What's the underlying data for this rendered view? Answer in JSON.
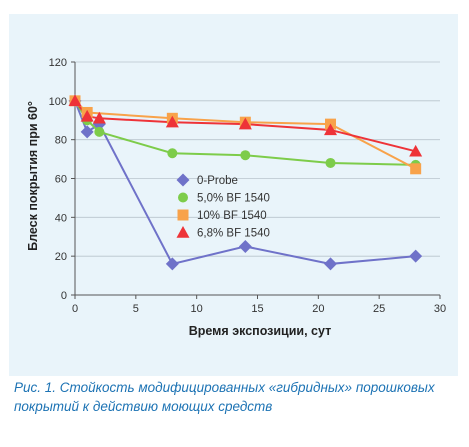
{
  "chart_data": {
    "type": "line",
    "xlabel": "Время экспозиции, сут",
    "ylabel": "Блеск покрытия при 60°",
    "xlim": [
      0,
      30
    ],
    "ylim": [
      0,
      120
    ],
    "xticks": [
      0,
      5,
      10,
      15,
      20,
      25,
      30
    ],
    "yticks": [
      0,
      20,
      40,
      60,
      80,
      100,
      120
    ],
    "grid": "horizontal",
    "legend_position": "center-right",
    "series": [
      {
        "name": "0-Probe",
        "marker": "diamond",
        "color": "#6f72c9",
        "x": [
          0,
          1,
          2,
          8,
          14,
          21,
          28
        ],
        "y": [
          100,
          84,
          88,
          16,
          25,
          16,
          20
        ]
      },
      {
        "name": "5,0% BF 1540",
        "marker": "circle",
        "color": "#7dcc4a",
        "x": [
          0,
          1,
          2,
          8,
          14,
          21,
          28
        ],
        "y": [
          100,
          90,
          84,
          73,
          72,
          68,
          67
        ]
      },
      {
        "name": "10% BF 1540",
        "marker": "square",
        "color": "#f8a24a",
        "x": [
          0,
          1,
          8,
          14,
          21,
          28
        ],
        "y": [
          100,
          94,
          91,
          89,
          88,
          65
        ]
      },
      {
        "name": "6,8% BF 1540",
        "marker": "triangle",
        "color": "#ee3338",
        "x": [
          0,
          1,
          2,
          8,
          14,
          21,
          28
        ],
        "y": [
          100,
          92,
          91,
          89,
          88,
          85,
          74
        ]
      }
    ]
  },
  "caption": {
    "label": "Рис. 1.",
    "text": "Стойкость модифицированных «гибридных» порошковых покрытий к действию моющих средств"
  }
}
